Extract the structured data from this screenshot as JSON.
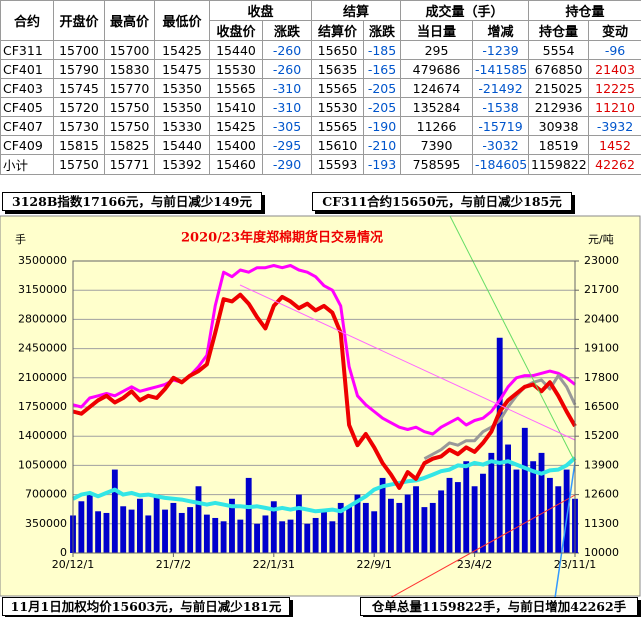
{
  "table": {
    "header_top": [
      "合约",
      "开盘价",
      "最高价",
      "最低价",
      "收盘",
      "结算",
      "成交量（手）",
      "持仓量"
    ],
    "header_sub": [
      "收盘价",
      "涨跌",
      "结算价",
      "涨跌",
      "当日量",
      "增减",
      "持仓量",
      "变动"
    ],
    "rows": [
      [
        "CF311",
        "15700",
        "15700",
        "15425",
        "15440",
        "-260",
        "15650",
        "-185",
        "295",
        "-1239",
        "5554",
        "-96"
      ],
      [
        "CF401",
        "15790",
        "15830",
        "15475",
        "15530",
        "-260",
        "15635",
        "-165",
        "479686",
        "-141585",
        "676850",
        "21403"
      ],
      [
        "CF403",
        "15745",
        "15770",
        "15350",
        "15565",
        "-310",
        "15565",
        "-205",
        "124674",
        "-21492",
        "215025",
        "12225"
      ],
      [
        "CF405",
        "15720",
        "15750",
        "15350",
        "15410",
        "-310",
        "15530",
        "-205",
        "135284",
        "-1538",
        "212936",
        "11210"
      ],
      [
        "CF407",
        "15730",
        "15750",
        "15330",
        "15425",
        "-305",
        "15565",
        "-190",
        "11266",
        "-15719",
        "30938",
        "-3932"
      ],
      [
        "CF409",
        "15815",
        "15825",
        "15440",
        "15400",
        "-295",
        "15610",
        "-210",
        "7390",
        "-3032",
        "18519",
        "1452"
      ],
      [
        "小计",
        "15750",
        "15771",
        "15392",
        "15460",
        "-290",
        "15593",
        "-193",
        "758595",
        "-184605",
        "1159822",
        "42262"
      ]
    ]
  },
  "notes": {
    "top_left": "3128B指数17166元，与前日减少149元",
    "top_right": "CF311合约15650元，与前日减少185元",
    "bottom_left": "11月1日加权均价15603元，与前日减少181元",
    "bottom_right": "仓单总量1159822手，与前日增加42262手"
  },
  "chart_data": {
    "type": "combo",
    "title": "2020/23年度郑棉期货日交易情况",
    "ylabel": "手",
    "y2label": "元/吨",
    "grid": true,
    "background": "#ffffcc",
    "categories": [
      "20/12/1",
      null,
      null,
      null,
      null,
      null,
      null,
      null,
      null,
      null,
      null,
      null,
      "21/7/2",
      null,
      null,
      null,
      null,
      null,
      null,
      null,
      null,
      null,
      null,
      null,
      "22/1/31",
      null,
      null,
      null,
      null,
      null,
      null,
      null,
      null,
      null,
      null,
      null,
      "22/9/1",
      null,
      null,
      null,
      null,
      null,
      null,
      null,
      null,
      null,
      null,
      null,
      "23/4/2",
      null,
      null,
      null,
      null,
      null,
      null,
      null,
      null,
      null,
      null,
      null,
      "23/11/1"
    ],
    "ylim": [
      0,
      3500000
    ],
    "yticks": [
      0,
      350000,
      700000,
      1050000,
      1400000,
      1750000,
      2100000,
      2450000,
      2800000,
      3150000,
      3500000
    ],
    "y2lim": [
      10000,
      23000
    ],
    "y2ticks": [
      10000,
      11300,
      12600,
      13900,
      15200,
      16500,
      17800,
      19100,
      20400,
      21700,
      23000
    ],
    "series": [
      {
        "kind": "bar",
        "axis": "y",
        "color": "#0000cc",
        "values": [
          450000,
          620000,
          700000,
          500000,
          480000,
          1000000,
          560000,
          520000,
          650000,
          450000,
          700000,
          520000,
          600000,
          480000,
          550000,
          800000,
          460000,
          420000,
          380000,
          650000,
          400000,
          900000,
          350000,
          450000,
          620000,
          380000,
          400000,
          700000,
          350000,
          420000,
          500000,
          380000,
          600000,
          550000,
          700000,
          600000,
          500000,
          900000,
          650000,
          600000,
          700000,
          800000,
          550000,
          600000,
          750000,
          900000,
          850000,
          1100000,
          800000,
          950000,
          1200000,
          2580000,
          1300000,
          1000000,
          1500000,
          1100000,
          1200000,
          900000,
          800000,
          1000000,
          650000
        ]
      },
      {
        "kind": "line",
        "axis": "y2",
        "color": "#ff00ff",
        "width": 3,
        "values": [
          16600,
          16500,
          16900,
          17000,
          17100,
          17000,
          17200,
          17400,
          17200,
          17300,
          17400,
          17500,
          17700,
          17600,
          17900,
          18300,
          18800,
          21000,
          22500,
          22300,
          22600,
          22500,
          22700,
          22700,
          22800,
          22700,
          22800,
          22600,
          22500,
          22300,
          21900,
          21700,
          21000,
          18300,
          17000,
          16600,
          16300,
          16000,
          15800,
          15600,
          15500,
          15600,
          15400,
          15300,
          15600,
          15800,
          16000,
          15700,
          15900,
          16000,
          16300,
          16800,
          17400,
          17800,
          17900,
          17900,
          18000,
          18100,
          18000,
          17800,
          17500
        ]
      },
      {
        "kind": "line",
        "axis": "y",
        "color": "#33e6e6",
        "width": 4,
        "values": [
          650000,
          700000,
          720000,
          680000,
          720000,
          760000,
          700000,
          720000,
          690000,
          700000,
          680000,
          660000,
          650000,
          640000,
          620000,
          600000,
          580000,
          600000,
          580000,
          560000,
          560000,
          550000,
          560000,
          540000,
          520000,
          540000,
          520000,
          540000,
          520000,
          500000,
          510000,
          520000,
          500000,
          560000,
          620000,
          680000,
          760000,
          800000,
          820000,
          840000,
          860000,
          870000,
          900000,
          940000,
          980000,
          1000000,
          1050000,
          1040000,
          1080000,
          1060000,
          1100000,
          1080000,
          1100000,
          1060000,
          1020000,
          980000,
          950000,
          990000,
          1000000,
          1050000,
          1140000
        ]
      },
      {
        "kind": "line",
        "axis": "y2",
        "color": "#999999",
        "width": 3,
        "values": [
          null,
          null,
          null,
          null,
          null,
          null,
          null,
          null,
          null,
          null,
          null,
          null,
          null,
          null,
          null,
          null,
          null,
          null,
          null,
          null,
          null,
          null,
          null,
          null,
          null,
          null,
          null,
          null,
          null,
          null,
          null,
          null,
          null,
          null,
          null,
          null,
          null,
          null,
          null,
          null,
          null,
          null,
          14200,
          14400,
          14600,
          14900,
          14800,
          15000,
          15000,
          15400,
          15600,
          15900,
          16500,
          17000,
          17400,
          17600,
          17700,
          17300,
          17900,
          17400,
          16600
        ]
      },
      {
        "kind": "line",
        "axis": "y2",
        "color": "#ee0000",
        "width": 4,
        "values": [
          16300,
          16200,
          16500,
          16800,
          17000,
          16700,
          16900,
          17200,
          16800,
          17000,
          16900,
          17300,
          17800,
          17600,
          17900,
          18100,
          18400,
          19800,
          21300,
          21200,
          21500,
          21100,
          20500,
          20000,
          21000,
          21400,
          21200,
          20900,
          21100,
          20800,
          21000,
          20700,
          19800,
          15700,
          14800,
          15300,
          14700,
          14000,
          13500,
          12900,
          13600,
          13300,
          14000,
          14200,
          14300,
          14600,
          14400,
          14700,
          14500,
          14900,
          15400,
          16300,
          16800,
          17100,
          17400,
          17500,
          17200,
          17600,
          17000,
          16300,
          15650
        ]
      }
    ]
  }
}
